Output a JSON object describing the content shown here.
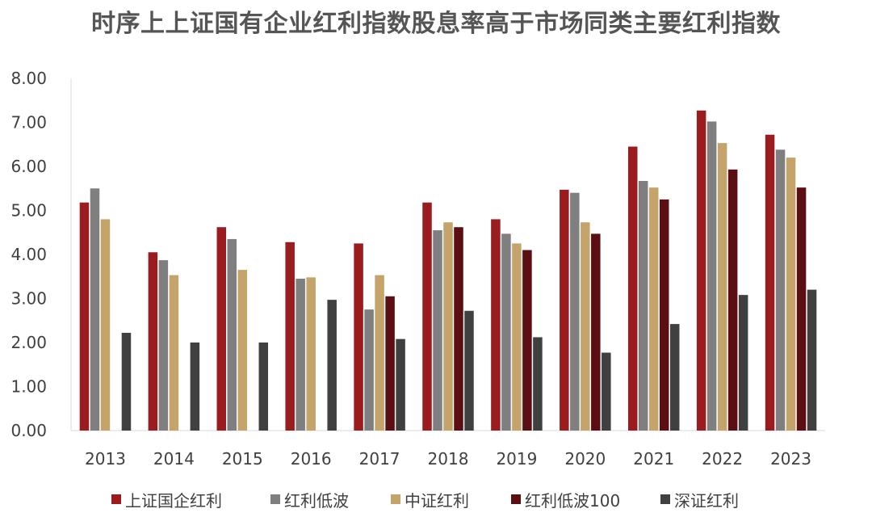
{
  "chart_data": {
    "type": "bar",
    "title": "时序上上证国有企业红利指数股息率高于市场同类主要红利指数",
    "categories": [
      "2013",
      "2014",
      "2015",
      "2016",
      "2017",
      "2018",
      "2019",
      "2020",
      "2021",
      "2022",
      "2023"
    ],
    "ylim": [
      0,
      8
    ],
    "yticks": [
      "0.00",
      "1.00",
      "2.00",
      "3.00",
      "4.00",
      "5.00",
      "6.00",
      "7.00",
      "8.00"
    ],
    "grid": false,
    "legend_position": "bottom",
    "series": [
      {
        "name": "上证国企红利",
        "color": "#9b1c1f",
        "values": [
          5.18,
          4.05,
          4.62,
          4.28,
          4.25,
          5.18,
          4.8,
          5.47,
          6.45,
          7.27,
          6.72
        ]
      },
      {
        "name": "红利低波",
        "color": "#7f7f7f",
        "values": [
          5.5,
          3.87,
          4.35,
          3.45,
          2.75,
          4.55,
          4.47,
          5.4,
          5.67,
          7.02,
          6.38
        ]
      },
      {
        "name": "中证红利",
        "color": "#c4a46b",
        "values": [
          4.8,
          3.53,
          3.65,
          3.48,
          3.53,
          4.73,
          4.25,
          4.73,
          5.52,
          6.53,
          6.2
        ]
      },
      {
        "name": "红利低波100",
        "color": "#5c0f12",
        "values": [
          null,
          null,
          null,
          null,
          3.05,
          4.62,
          4.1,
          4.47,
          5.25,
          5.93,
          5.52
        ]
      },
      {
        "name": "深证红利",
        "color": "#404040",
        "values": [
          2.22,
          2.0,
          2.0,
          2.97,
          2.08,
          2.72,
          2.12,
          1.77,
          2.42,
          3.08,
          3.2
        ]
      }
    ]
  }
}
